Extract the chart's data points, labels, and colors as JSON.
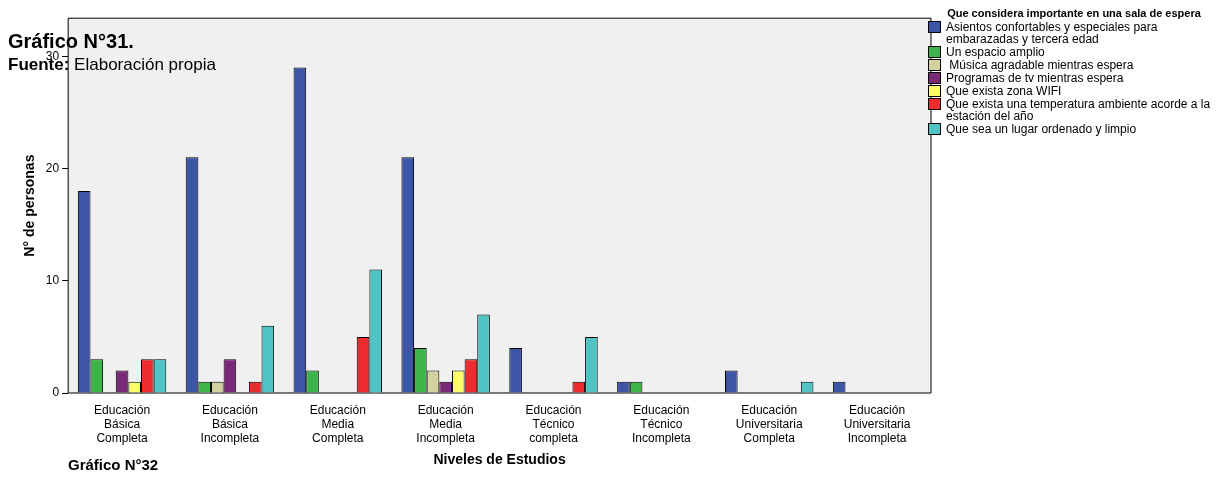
{
  "chart_data": {
    "type": "bar",
    "title": "Gráfico N°31.",
    "subtitle": "Fuente: Elaboración propia",
    "xlabel": "Niveles de Estudios",
    "ylabel": "N° de personas",
    "legend_title": "Que considera importante en una sala de espera",
    "annotations": [
      "Gráfico N°32"
    ],
    "categories": [
      "Educación Básica Completa",
      "Educación Básica Incompleta",
      "Educación Media Completa",
      "Educación Media Incompleta",
      "Educación Técnico completa",
      "Educación Técnico Incompleta",
      "Educación Universitaria Completa",
      "Educación Universitaria Incompleta"
    ],
    "series": [
      {
        "name": "Asientos confortables y especiales para embarazadas y tercera edad",
        "color": "#3d55a6",
        "values": [
          18,
          21,
          29,
          21,
          4,
          1,
          2,
          1
        ]
      },
      {
        "name": "Un espacio amplio",
        "color": "#3cb44a",
        "values": [
          3,
          1,
          2,
          4,
          0,
          1,
          0,
          0
        ]
      },
      {
        "name": " Música agradable mientras espera",
        "color": "#d4d1a0",
        "values": [
          0,
          1,
          0,
          2,
          0,
          0,
          0,
          0
        ]
      },
      {
        "name": "Programas de tv mientras espera",
        "color": "#7b2a78",
        "values": [
          2,
          3,
          0,
          1,
          0,
          0,
          0,
          0
        ]
      },
      {
        "name": "Que exista zona WIFI",
        "color": "#fdfd6a",
        "values": [
          1,
          0,
          0,
          2,
          0,
          0,
          0,
          0
        ]
      },
      {
        "name": "Que exista una temperatura ambiente acorde a la estación del año",
        "color": "#ef2b2d",
        "values": [
          3,
          1,
          5,
          3,
          1,
          0,
          0,
          0
        ]
      },
      {
        "name": "Que sea un lugar ordenado y limpio",
        "color": "#4ec4c4",
        "values": [
          3,
          6,
          11,
          7,
          5,
          0,
          1,
          0
        ]
      }
    ],
    "ylim": [
      0,
      33.4
    ],
    "yticks": [
      0,
      10,
      20,
      30
    ],
    "grid": false,
    "legend": "right"
  }
}
